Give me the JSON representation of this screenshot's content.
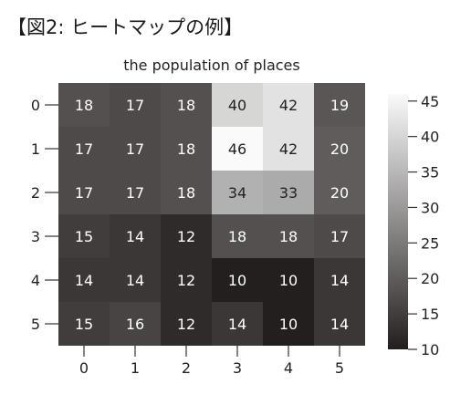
{
  "heading": "【図2: ヒートマップの例】",
  "chart_data": {
    "type": "heatmap",
    "title": "the population of places",
    "x_ticks": [
      "0",
      "1",
      "2",
      "3",
      "4",
      "5"
    ],
    "y_ticks": [
      "0",
      "1",
      "2",
      "3",
      "4",
      "5"
    ],
    "values": [
      [
        18,
        17,
        18,
        40,
        42,
        19
      ],
      [
        17,
        17,
        18,
        46,
        42,
        20
      ],
      [
        17,
        17,
        18,
        34,
        33,
        20
      ],
      [
        15,
        14,
        12,
        18,
        18,
        17
      ],
      [
        14,
        14,
        12,
        10,
        10,
        14
      ],
      [
        15,
        16,
        12,
        14,
        10,
        14
      ]
    ],
    "colormap": "gray",
    "vmin": 10,
    "vmax": 46,
    "colorbar_ticks": [
      "10",
      "15",
      "20",
      "25",
      "30",
      "35",
      "40",
      "45"
    ],
    "colorbar_placement": "right",
    "low_color": "#231f1e",
    "high_color": "#fafafa"
  }
}
